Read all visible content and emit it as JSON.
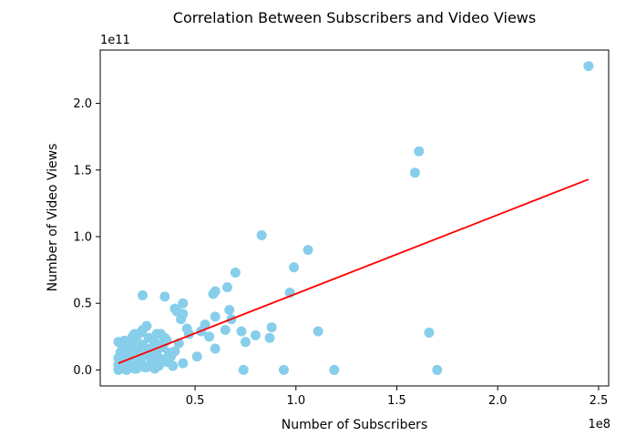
{
  "chart_data": {
    "type": "scatter",
    "title": "Correlation Between Subscribers and Video Views",
    "xlabel": "Number of Subscribers",
    "ylabel": "Number of Video Views",
    "x_offset_label": "1e8",
    "y_offset_label": "1e11",
    "xlim": [
      0.03,
      2.55
    ],
    "ylim": [
      -0.12,
      2.4
    ],
    "x_ticks": [
      0.5,
      1.0,
      1.5,
      2.0,
      2.5
    ],
    "x_tick_labels": [
      "0.5",
      "1.0",
      "1.5",
      "2.0",
      "2.5"
    ],
    "y_ticks": [
      0.0,
      0.5,
      1.0,
      1.5,
      2.0
    ],
    "y_tick_labels": [
      "0.0",
      "0.5",
      "1.0",
      "1.5",
      "2.0"
    ],
    "grid": false,
    "point_color": "#87ceeb",
    "line_color": "#ff0000",
    "trend_line": {
      "x": [
        0.12,
        2.45
      ],
      "y": [
        0.05,
        1.43
      ]
    },
    "points": [
      {
        "x": 2.45,
        "y": 2.28
      },
      {
        "x": 1.61,
        "y": 1.64
      },
      {
        "x": 1.59,
        "y": 1.48
      },
      {
        "x": 1.66,
        "y": 0.28
      },
      {
        "x": 1.7,
        "y": 0.0
      },
      {
        "x": 1.19,
        "y": 0.0
      },
      {
        "x": 1.06,
        "y": 0.9
      },
      {
        "x": 1.11,
        "y": 0.29
      },
      {
        "x": 0.99,
        "y": 0.77
      },
      {
        "x": 0.97,
        "y": 0.58
      },
      {
        "x": 0.94,
        "y": 0.0
      },
      {
        "x": 0.83,
        "y": 1.01
      },
      {
        "x": 0.88,
        "y": 0.32
      },
      {
        "x": 0.87,
        "y": 0.24
      },
      {
        "x": 0.8,
        "y": 0.26
      },
      {
        "x": 0.74,
        "y": 0.0
      },
      {
        "x": 0.75,
        "y": 0.21
      },
      {
        "x": 0.73,
        "y": 0.29
      },
      {
        "x": 0.7,
        "y": 0.73
      },
      {
        "x": 0.66,
        "y": 0.62
      },
      {
        "x": 0.67,
        "y": 0.45
      },
      {
        "x": 0.68,
        "y": 0.38
      },
      {
        "x": 0.65,
        "y": 0.3
      },
      {
        "x": 0.6,
        "y": 0.59
      },
      {
        "x": 0.59,
        "y": 0.57
      },
      {
        "x": 0.6,
        "y": 0.4
      },
      {
        "x": 0.6,
        "y": 0.16
      },
      {
        "x": 0.57,
        "y": 0.25
      },
      {
        "x": 0.55,
        "y": 0.34
      },
      {
        "x": 0.53,
        "y": 0.29
      },
      {
        "x": 0.51,
        "y": 0.1
      },
      {
        "x": 0.47,
        "y": 0.27
      },
      {
        "x": 0.46,
        "y": 0.31
      },
      {
        "x": 0.44,
        "y": 0.5
      },
      {
        "x": 0.44,
        "y": 0.42
      },
      {
        "x": 0.43,
        "y": 0.38
      },
      {
        "x": 0.41,
        "y": 0.44
      },
      {
        "x": 0.4,
        "y": 0.46
      },
      {
        "x": 0.35,
        "y": 0.55
      },
      {
        "x": 0.24,
        "y": 0.56
      },
      {
        "x": 0.44,
        "y": 0.05
      },
      {
        "x": 0.42,
        "y": 0.2
      },
      {
        "x": 0.4,
        "y": 0.14
      },
      {
        "x": 0.38,
        "y": 0.1
      },
      {
        "x": 0.36,
        "y": 0.22
      },
      {
        "x": 0.36,
        "y": 0.06
      },
      {
        "x": 0.34,
        "y": 0.17
      },
      {
        "x": 0.33,
        "y": 0.27
      },
      {
        "x": 0.32,
        "y": 0.03
      },
      {
        "x": 0.31,
        "y": 0.12
      },
      {
        "x": 0.3,
        "y": 0.21
      },
      {
        "x": 0.29,
        "y": 0.08
      },
      {
        "x": 0.28,
        "y": 0.16
      },
      {
        "x": 0.27,
        "y": 0.24
      },
      {
        "x": 0.26,
        "y": 0.33
      },
      {
        "x": 0.26,
        "y": 0.02
      },
      {
        "x": 0.25,
        "y": 0.11
      },
      {
        "x": 0.24,
        "y": 0.19
      },
      {
        "x": 0.23,
        "y": 0.28
      },
      {
        "x": 0.23,
        "y": 0.06
      },
      {
        "x": 0.22,
        "y": 0.14
      },
      {
        "x": 0.21,
        "y": 0.22
      },
      {
        "x": 0.21,
        "y": 0.01
      },
      {
        "x": 0.2,
        "y": 0.09
      },
      {
        "x": 0.19,
        "y": 0.17
      },
      {
        "x": 0.19,
        "y": 0.25
      },
      {
        "x": 0.18,
        "y": 0.04
      },
      {
        "x": 0.17,
        "y": 0.12
      },
      {
        "x": 0.17,
        "y": 0.2
      },
      {
        "x": 0.16,
        "y": 0.0
      },
      {
        "x": 0.16,
        "y": 0.08
      },
      {
        "x": 0.15,
        "y": 0.15
      },
      {
        "x": 0.15,
        "y": 0.03
      },
      {
        "x": 0.14,
        "y": 0.1
      },
      {
        "x": 0.14,
        "y": 0.18
      },
      {
        "x": 0.13,
        "y": 0.01
      },
      {
        "x": 0.13,
        "y": 0.06
      },
      {
        "x": 0.13,
        "y": 0.13
      },
      {
        "x": 0.12,
        "y": 0.0
      },
      {
        "x": 0.12,
        "y": 0.04
      },
      {
        "x": 0.12,
        "y": 0.09
      },
      {
        "x": 0.12,
        "y": 0.21
      },
      {
        "x": 0.28,
        "y": 0.05
      },
      {
        "x": 0.3,
        "y": 0.01
      },
      {
        "x": 0.32,
        "y": 0.19
      },
      {
        "x": 0.34,
        "y": 0.08
      },
      {
        "x": 0.37,
        "y": 0.13
      },
      {
        "x": 0.39,
        "y": 0.03
      },
      {
        "x": 0.27,
        "y": 0.14
      },
      {
        "x": 0.25,
        "y": 0.02
      },
      {
        "x": 0.22,
        "y": 0.07
      },
      {
        "x": 0.2,
        "y": 0.01
      },
      {
        "x": 0.18,
        "y": 0.1
      },
      {
        "x": 0.29,
        "y": 0.23
      },
      {
        "x": 0.31,
        "y": 0.27
      },
      {
        "x": 0.35,
        "y": 0.24
      },
      {
        "x": 0.24,
        "y": 0.3
      },
      {
        "x": 0.2,
        "y": 0.27
      },
      {
        "x": 0.15,
        "y": 0.22
      }
    ]
  }
}
